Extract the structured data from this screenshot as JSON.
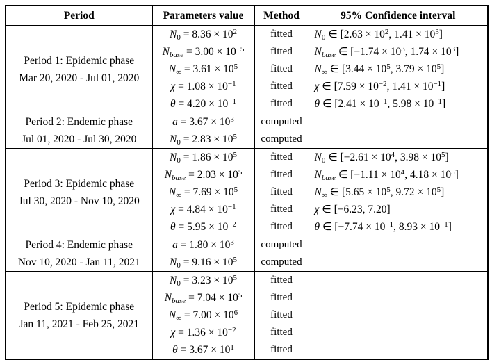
{
  "page": {
    "background": "#ffffff",
    "text_color": "#000000",
    "border_color": "#000000"
  },
  "table": {
    "headers": [
      "Period",
      "Parameters value",
      "Method",
      "95% Confidence interval"
    ],
    "periods": [
      {
        "name": "Period 1: Epidemic phase",
        "dates": "Mar 20, 2020 - Jul 01, 2020",
        "rows": [
          {
            "param": "*N*_{0} = 8.36 × 10^{2}",
            "method": "fitted",
            "ci": "*N*_{0} ∈ [2.63 × 10^{2}, 1.41 × 10^{3}]"
          },
          {
            "param": "*N*_{*base*} = 3.00 × 10^{−5}",
            "method": "fitted",
            "ci": "*N*_{*base*} ∈ [−1.74 × 10^{3}, 1.74 × 10^{3}]"
          },
          {
            "param": "*N*_{∞} = 3.61 × 10^{5}",
            "method": "fitted",
            "ci": "*N*_{∞} ∈ [3.44 × 10^{5}, 3.79 × 10^{5}]"
          },
          {
            "param": "*χ* = 1.08 × 10^{−1}",
            "method": "fitted",
            "ci": "*χ* ∈ [7.59 × 10^{−2}, 1.41 × 10^{−1}]"
          },
          {
            "param": "*θ* = 4.20 × 10^{−1}",
            "method": "fitted",
            "ci": "*θ* ∈ [2.41 × 10^{−1}, 5.98 × 10^{−1}]"
          }
        ]
      },
      {
        "name": "Period 2: Endemic phase",
        "dates": "Jul 01, 2020 - Jul 30, 2020",
        "rows": [
          {
            "param": "*a* = 3.67 × 10^{3}",
            "method": "computed",
            "ci": ""
          },
          {
            "param": "*N*_{0} = 2.83 × 10^{5}",
            "method": "computed",
            "ci": ""
          }
        ]
      },
      {
        "name": "Period 3: Epidemic phase",
        "dates": "Jul 30, 2020 - Nov 10, 2020",
        "rows": [
          {
            "param": "*N*_{0} = 1.86 × 10^{5}",
            "method": "fitted",
            "ci": "*N*_{0} ∈ [−2.61 × 10^{4}, 3.98 × 10^{5}]"
          },
          {
            "param": "*N*_{*base*} = 2.03 × 10^{5}",
            "method": "fitted",
            "ci": "*N*_{*base*} ∈ [−1.11 × 10^{4}, 4.18 × 10^{5}]"
          },
          {
            "param": "*N*_{∞} = 7.69 × 10^{5}",
            "method": "fitted",
            "ci": "*N*_{∞} ∈ [5.65 × 10^{5}, 9.72 × 10^{5}]"
          },
          {
            "param": "*χ* = 4.84 × 10^{−1}",
            "method": "fitted",
            "ci": "*χ* ∈ [−6.23, 7.20]"
          },
          {
            "param": "*θ* = 5.95 × 10^{−2}",
            "method": "fitted",
            "ci": "*θ* ∈ [−7.74 × 10^{−1}, 8.93 × 10^{−1}]"
          }
        ]
      },
      {
        "name": "Period 4: Endemic phase",
        "dates": "Nov 10, 2020 - Jan 11, 2021",
        "rows": [
          {
            "param": "*a* = 1.80 × 10^{3}",
            "method": "computed",
            "ci": ""
          },
          {
            "param": "*N*_{0} = 9.16 × 10^{5}",
            "method": "computed",
            "ci": ""
          }
        ]
      },
      {
        "name": "Period 5: Epidemic phase",
        "dates": "Jan 11, 2021 - Feb 25, 2021",
        "rows": [
          {
            "param": "*N*_{0} = 3.23 × 10^{5}",
            "method": "fitted",
            "ci": ""
          },
          {
            "param": "*N*_{*base*} = 7.04 × 10^{5}",
            "method": "fitted",
            "ci": ""
          },
          {
            "param": "*N*_{∞} = 7.00 × 10^{6}",
            "method": "fitted",
            "ci": ""
          },
          {
            "param": "*χ* = 1.36 × 10^{−2}",
            "method": "fitted",
            "ci": ""
          },
          {
            "param": "*θ* = 3.67 × 10^{1}",
            "method": "fitted",
            "ci": ""
          }
        ]
      }
    ]
  }
}
